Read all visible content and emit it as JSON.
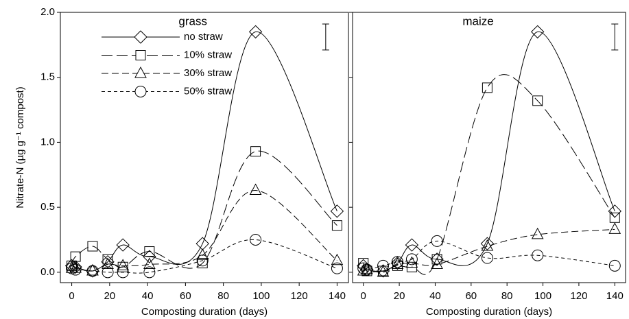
{
  "chart_data": [
    {
      "type": "line",
      "title": "grass",
      "xlabel": "Composting duration (days)",
      "ylabel": "Nitrate-N (µg g⁻¹ compost)",
      "x": [
        0,
        2,
        11,
        19,
        27,
        41,
        69,
        97,
        140
      ],
      "xlim": [
        -6,
        146
      ],
      "xticks": [
        0,
        20,
        40,
        60,
        80,
        100,
        120,
        140
      ],
      "ylim": [
        -0.08,
        2.0
      ],
      "yticks": [
        {
          "value": 0,
          "label": "0.0"
        },
        0.5,
        {
          "value": 1,
          "label": "1.0"
        },
        1.5,
        {
          "value": 2,
          "label": "2.0"
        }
      ],
      "ytick_labels": true,
      "legend": "upper left",
      "error_bar": {
        "x": 134,
        "low": 1.71,
        "high": 1.91
      },
      "series": [
        {
          "name": "no straw",
          "color": "#000000",
          "marker": "diamond",
          "line_style": "solid",
          "values": [
            0.05,
            0.04,
            0.01,
            0.08,
            0.21,
            0.12,
            0.22,
            1.85,
            0.47
          ]
        },
        {
          "name": "10% straw",
          "color": "#000000",
          "marker": "square",
          "line_style": "long-dash",
          "values": [
            0.05,
            0.12,
            0.2,
            0.1,
            0.04,
            0.16,
            0.07,
            0.93,
            0.36
          ]
        },
        {
          "name": "30% straw",
          "color": "#000000",
          "marker": "triangle",
          "line_style": "medium-dash",
          "values": [
            0.03,
            0.03,
            0.01,
            0.06,
            0.05,
            0.06,
            0.13,
            0.63,
            0.09
          ]
        },
        {
          "name": "50% straw",
          "color": "#000000",
          "marker": "circle",
          "line_style": "short-dash",
          "values": [
            0.03,
            0.02,
            0.01,
            0.0,
            0.0,
            0.0,
            0.09,
            0.25,
            0.03
          ]
        }
      ]
    },
    {
      "type": "line",
      "title": "maize",
      "xlabel": "Composting duration (days)",
      "x": [
        0,
        2,
        11,
        19,
        27,
        41,
        69,
        97,
        140
      ],
      "xlim": [
        -6,
        146
      ],
      "xticks": [
        0,
        20,
        40,
        60,
        80,
        100,
        120,
        140
      ],
      "ylim": [
        -0.08,
        2.0
      ],
      "yticks": [
        0,
        0.5,
        1,
        1.5,
        2
      ],
      "ytick_labels": false,
      "error_bar": {
        "x": 140,
        "low": 1.71,
        "high": 1.91
      },
      "series": [
        {
          "marker": "diamond",
          "color": "#000000",
          "line_style": "solid",
          "values": [
            0.05,
            0.02,
            0.01,
            0.07,
            0.21,
            0.1,
            0.22,
            1.85,
            0.47
          ]
        },
        {
          "marker": "square",
          "color": "#000000",
          "line_style": "long-dash",
          "values": [
            0.07,
            0.01,
            0.01,
            0.05,
            0.04,
            0.1,
            1.42,
            1.32,
            0.42
          ]
        },
        {
          "marker": "triangle",
          "color": "#000000",
          "line_style": "medium-dash",
          "values": [
            0.01,
            0.02,
            0.0,
            0.06,
            0.07,
            0.06,
            0.2,
            0.29,
            0.33
          ]
        },
        {
          "marker": "circle",
          "color": "#000000",
          "line_style": "short-dash",
          "values": [
            0.03,
            0.02,
            0.05,
            0.08,
            0.1,
            0.24,
            0.11,
            0.13,
            0.05
          ]
        }
      ]
    }
  ]
}
